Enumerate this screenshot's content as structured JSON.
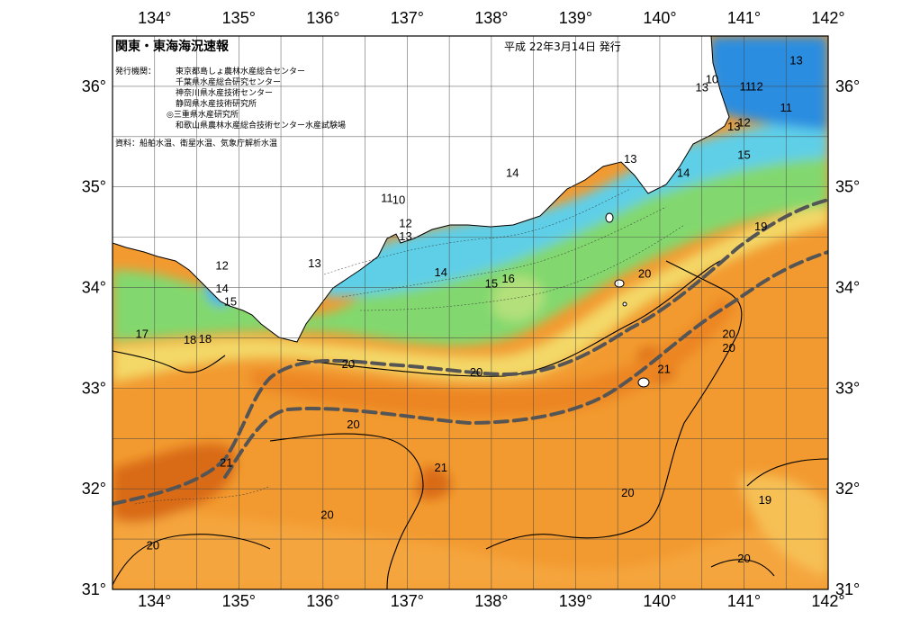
{
  "header": {
    "title": "関東・東海海況速報",
    "issue_date": "平成 22年3月14日 発行",
    "publisher_label": "発行機関：",
    "publishers": [
      "東京都島しょ農林水産総合センター",
      "千葉県水産総合研究センター",
      "神奈川県水産技術センター",
      "静岡県水産技術研究所",
      "◎三重県水産研究所",
      "和歌山県農林水産総合技術センター水産試験場"
    ],
    "sources": "資料：船舶水温、衛星水温、気象庁解析水温"
  },
  "axes": {
    "lon_labels": [
      "134°",
      "135°",
      "136°",
      "137°",
      "138°",
      "139°",
      "140°",
      "141°",
      "142°"
    ],
    "lat_labels": [
      "36°",
      "35°",
      "34°",
      "33°",
      "32°",
      "31°"
    ]
  },
  "isotherm_labels": [
    {
      "text": "13",
      "lon": 140.5,
      "lat": 35.95
    },
    {
      "text": "10",
      "lon": 140.62,
      "lat": 36.03
    },
    {
      "text": "11",
      "lon": 141.02,
      "lat": 35.96
    },
    {
      "text": "12",
      "lon": 141.15,
      "lat": 35.96
    },
    {
      "text": "13",
      "lon": 141.62,
      "lat": 36.22
    },
    {
      "text": "11",
      "lon": 141.5,
      "lat": 35.75
    },
    {
      "text": "13",
      "lon": 140.88,
      "lat": 35.56
    },
    {
      "text": "12",
      "lon": 141.0,
      "lat": 35.6
    },
    {
      "text": "15",
      "lon": 141.0,
      "lat": 35.28
    },
    {
      "text": "13",
      "lon": 139.65,
      "lat": 35.24
    },
    {
      "text": "14",
      "lon": 140.28,
      "lat": 35.1
    },
    {
      "text": "14",
      "lon": 138.25,
      "lat": 35.1
    },
    {
      "text": "11",
      "lon": 136.76,
      "lat": 34.85
    },
    {
      "text": "10",
      "lon": 136.9,
      "lat": 34.83
    },
    {
      "text": "12",
      "lon": 136.98,
      "lat": 34.6
    },
    {
      "text": "13",
      "lon": 136.98,
      "lat": 34.47
    },
    {
      "text": "13",
      "lon": 135.9,
      "lat": 34.2
    },
    {
      "text": "14",
      "lon": 137.4,
      "lat": 34.11
    },
    {
      "text": "16",
      "lon": 138.2,
      "lat": 34.05
    },
    {
      "text": "15",
      "lon": 138.0,
      "lat": 34.0
    },
    {
      "text": "12",
      "lon": 134.8,
      "lat": 34.18
    },
    {
      "text": "14",
      "lon": 134.8,
      "lat": 33.95
    },
    {
      "text": "15",
      "lon": 134.9,
      "lat": 33.82
    },
    {
      "text": "17",
      "lon": 133.85,
      "lat": 33.5
    },
    {
      "text": "18",
      "lon": 134.42,
      "lat": 33.44
    },
    {
      "text": "18",
      "lon": 134.6,
      "lat": 33.45
    },
    {
      "text": "20",
      "lon": 139.82,
      "lat": 34.1
    },
    {
      "text": "19",
      "lon": 141.2,
      "lat": 34.57
    },
    {
      "text": "20",
      "lon": 140.82,
      "lat": 33.5
    },
    {
      "text": "20",
      "lon": 140.82,
      "lat": 33.36
    },
    {
      "text": "21",
      "lon": 140.05,
      "lat": 33.15
    },
    {
      "text": "20",
      "lon": 136.3,
      "lat": 33.2
    },
    {
      "text": "20",
      "lon": 137.82,
      "lat": 33.12
    },
    {
      "text": "20",
      "lon": 136.36,
      "lat": 32.6
    },
    {
      "text": "21",
      "lon": 134.85,
      "lat": 32.22
    },
    {
      "text": "21",
      "lon": 137.4,
      "lat": 32.17
    },
    {
      "text": "20",
      "lon": 139.62,
      "lat": 31.92
    },
    {
      "text": "19",
      "lon": 141.25,
      "lat": 31.85
    },
    {
      "text": "20",
      "lon": 136.05,
      "lat": 31.7
    },
    {
      "text": "20",
      "lon": 133.98,
      "lat": 31.4
    },
    {
      "text": "20",
      "lon": 141.0,
      "lat": 31.27
    }
  ],
  "colors": {
    "warm_deep": "#dc6f1c",
    "warm": "#ee8c25",
    "warm_light": "#f5a33a",
    "yellow": "#f3dc6a",
    "green": "#7fdc6c",
    "cyan": "#5fd0ec",
    "blue": "#2a8de0"
  }
}
